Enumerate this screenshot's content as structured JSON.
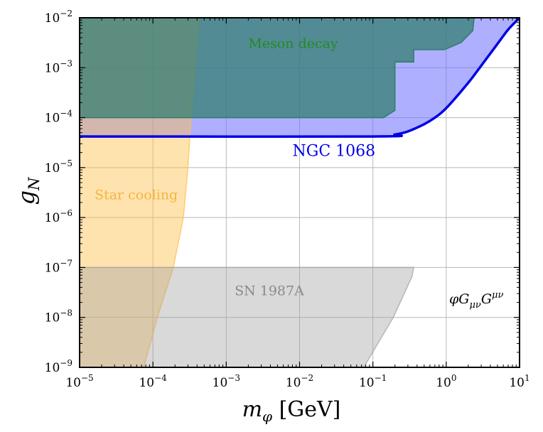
{
  "chart_data": {
    "type": "area",
    "title": "",
    "xlabel": "m_φ [GeV]",
    "ylabel": "g_N",
    "x_scale": "log",
    "y_scale": "log",
    "xlim": [
      1e-05,
      10
    ],
    "ylim": [
      1e-09,
      0.01
    ],
    "grid": true,
    "x_ticks": [
      {
        "value": 1e-05,
        "base": "10",
        "exp": "−5"
      },
      {
        "value": 0.0001,
        "base": "10",
        "exp": "−4"
      },
      {
        "value": 0.001,
        "base": "10",
        "exp": "−3"
      },
      {
        "value": 0.01,
        "base": "10",
        "exp": "−2"
      },
      {
        "value": 0.1,
        "base": "10",
        "exp": "−1"
      },
      {
        "value": 1,
        "base": "10",
        "exp": "0"
      },
      {
        "value": 10,
        "base": "10",
        "exp": "1"
      }
    ],
    "y_ticks": [
      {
        "value": 1e-09,
        "base": "10",
        "exp": "−9"
      },
      {
        "value": 1e-08,
        "base": "10",
        "exp": "−8"
      },
      {
        "value": 1e-07,
        "base": "10",
        "exp": "−7"
      },
      {
        "value": 1e-06,
        "base": "10",
        "exp": "−6"
      },
      {
        "value": 1e-05,
        "base": "10",
        "exp": "−5"
      },
      {
        "value": 0.0001,
        "base": "10",
        "exp": "−4"
      },
      {
        "value": 0.001,
        "base": "10",
        "exp": "−3"
      },
      {
        "value": 0.01,
        "base": "10",
        "exp": "−2"
      }
    ],
    "regions": [
      {
        "name": "Star cooling",
        "color": "#ffc04d",
        "opacity": 0.45,
        "label_pos": [
          1.6e-05,
          2.3e-06
        ],
        "label_color": "#f5b341",
        "points": [
          [
            1e-05,
            1e-09
          ],
          [
            7.5e-05,
            1e-09
          ],
          [
            0.000115,
            1e-08
          ],
          [
            0.00019,
            1e-07
          ],
          [
            0.00026,
            1e-06
          ],
          [
            0.0003,
            1e-05
          ],
          [
            0.00033,
            0.0001
          ],
          [
            0.00037,
            0.001
          ],
          [
            0.00042,
            0.01
          ],
          [
            1e-05,
            0.01
          ]
        ]
      },
      {
        "name": "SN 1987A",
        "color": "#a0a0a0",
        "opacity": 0.4,
        "label_pos": [
          0.0013,
          2.8e-08
        ],
        "label_color": "#8a8a8a",
        "points": [
          [
            1e-05,
            1e-09
          ],
          [
            0.075,
            1e-09
          ],
          [
            0.19,
            1e-08
          ],
          [
            0.34,
            6.5e-08
          ],
          [
            0.36,
            1e-07
          ],
          [
            1e-05,
            1e-07
          ]
        ]
      },
      {
        "name": "Meson decay",
        "color": "#2e7d6b",
        "opacity": 0.72,
        "label_pos": [
          0.002,
          0.0025
        ],
        "label_color": "#228b22",
        "points": [
          [
            1e-05,
            0.0001
          ],
          [
            0.14,
            0.0001
          ],
          [
            0.2,
            0.00014
          ],
          [
            0.2,
            0.0013
          ],
          [
            0.36,
            0.0013
          ],
          [
            0.36,
            0.0023
          ],
          [
            0.95,
            0.0023
          ],
          [
            1.6,
            0.0032
          ],
          [
            2.3,
            0.0055
          ],
          [
            2.4,
            0.01
          ],
          [
            1e-05,
            0.01
          ]
        ]
      }
    ],
    "series": [
      {
        "name": "NGC 1068",
        "color": "#0000e6",
        "fill_color": "#6e6eff",
        "fill_opacity": 0.55,
        "label_pos": [
          0.008,
          1.7e-05
        ],
        "x": [
          1e-05,
          0.1,
          0.2,
          0.3,
          0.5,
          0.7,
          1.0,
          2.0,
          3.0,
          5.0,
          7.0,
          10.0
        ],
        "y": [
          4.2e-05,
          4.2e-05,
          4.6e-05,
          5.3e-05,
          7.4e-05,
          0.0001,
          0.000155,
          0.0005,
          0.0011,
          0.003,
          0.0058,
          0.01
        ]
      }
    ],
    "annotations": [
      {
        "text": "φGμνGμν",
        "pos": [
          1.0,
          2.6e-08
        ],
        "color": "#000000"
      }
    ]
  }
}
